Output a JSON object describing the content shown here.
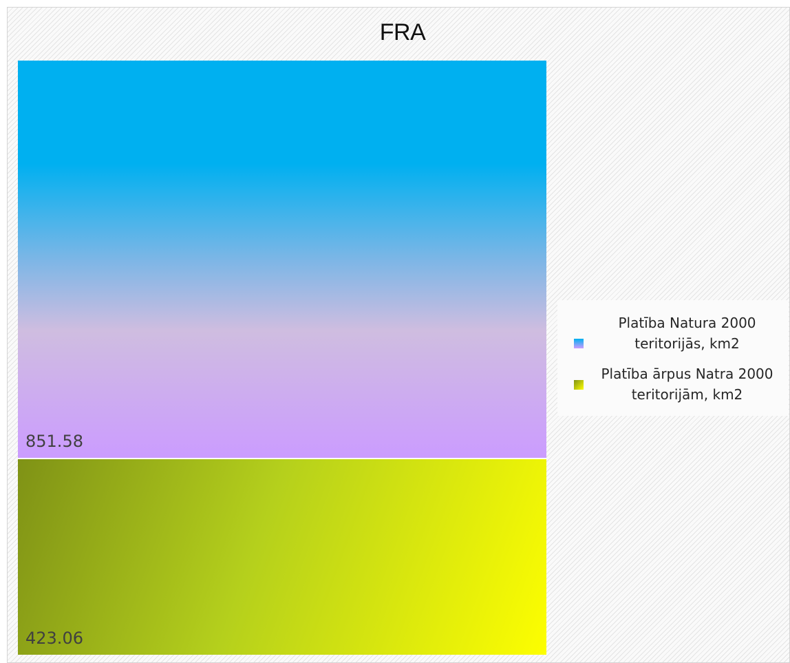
{
  "chart_data": {
    "type": "treemap",
    "title": "FRA",
    "series": [
      {
        "name": "Platība Natura 2000 teritorijās, km2",
        "value": 851.58,
        "label": "851.58"
      },
      {
        "name": "Platība ārpus Natra 2000 teritorijām, km2",
        "value": 423.06,
        "label": "423.06"
      }
    ],
    "legend_position": "right",
    "colors": {
      "natura_top": "#00b0f0",
      "natura_bottom": "#cb9cff",
      "outside_start": "#7f9216",
      "outside_end": "#fdfe00"
    }
  }
}
